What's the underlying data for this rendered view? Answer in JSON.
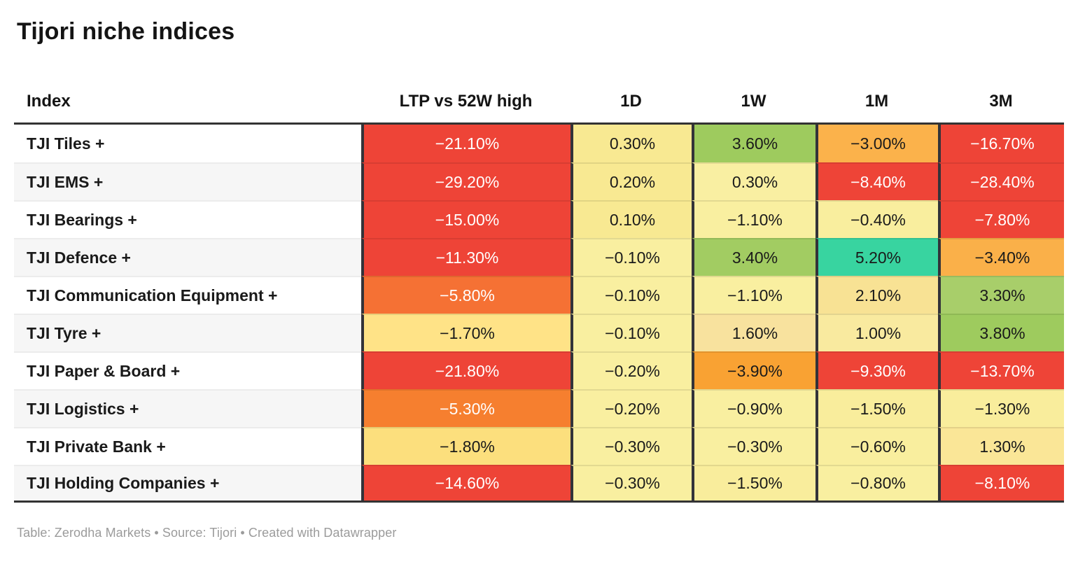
{
  "title": "Tijori niche indices",
  "footer": "Table: Zerodha Markets • Source: Tijori • Created with Datawrapper",
  "colors": {
    "strong_negative": "#ee4437",
    "negative_orange_red": "#f57134",
    "negative_orange": "#fab24b",
    "negative_gold": "#ffe387",
    "neutral_pale_yellow": "#f9efa0",
    "positive_green": "#9ecb5e",
    "strong_positive_teal": "#38d4a0",
    "border_dark": "#333333",
    "row_alt_bg": "#f6f6f6",
    "text_dark": "#1a1a1a",
    "text_light": "#ffffff",
    "footer_gray": "#9b9b9b"
  },
  "chart_data": {
    "type": "heatmap",
    "title": "Tijori niche indices",
    "columns": [
      "Index",
      "LTP vs 52W high",
      "1D",
      "1W",
      "1M",
      "3M"
    ],
    "legend_position": "none",
    "grid": "row-stripes",
    "rows": [
      {
        "index": "TJI Tiles +",
        "cells": [
          {
            "v": "−21.10%",
            "bg": "#ee4437",
            "fg": "#ffffff"
          },
          {
            "v": "0.30%",
            "bg": "#f8e992",
            "fg": "#1a1a1a"
          },
          {
            "v": "3.60%",
            "bg": "#9ecb5e",
            "fg": "#1a1a1a"
          },
          {
            "v": "−3.00%",
            "bg": "#fbb24b",
            "fg": "#1a1a1a"
          },
          {
            "v": "−16.70%",
            "bg": "#ee4437",
            "fg": "#ffffff"
          }
        ]
      },
      {
        "index": "TJI EMS +",
        "cells": [
          {
            "v": "−29.20%",
            "bg": "#ee4437",
            "fg": "#ffffff"
          },
          {
            "v": "0.20%",
            "bg": "#f8e992",
            "fg": "#1a1a1a"
          },
          {
            "v": "0.30%",
            "bg": "#f9efa2",
            "fg": "#1a1a1a"
          },
          {
            "v": "−8.40%",
            "bg": "#ee4437",
            "fg": "#ffffff"
          },
          {
            "v": "−28.40%",
            "bg": "#ee4437",
            "fg": "#ffffff"
          }
        ]
      },
      {
        "index": "TJI Bearings +",
        "cells": [
          {
            "v": "−15.00%",
            "bg": "#ee4437",
            "fg": "#ffffff"
          },
          {
            "v": "0.10%",
            "bg": "#f8e992",
            "fg": "#1a1a1a"
          },
          {
            "v": "−1.10%",
            "bg": "#f9efa0",
            "fg": "#1a1a1a"
          },
          {
            "v": "−0.40%",
            "bg": "#f9ee9e",
            "fg": "#1a1a1a"
          },
          {
            "v": "−7.80%",
            "bg": "#ee4437",
            "fg": "#ffffff"
          }
        ]
      },
      {
        "index": "TJI Defence +",
        "cells": [
          {
            "v": "−11.30%",
            "bg": "#ee4437",
            "fg": "#ffffff"
          },
          {
            "v": "−0.10%",
            "bg": "#f9efa0",
            "fg": "#1a1a1a"
          },
          {
            "v": "3.40%",
            "bg": "#a2cc62",
            "fg": "#1a1a1a"
          },
          {
            "v": "5.20%",
            "bg": "#38d4a0",
            "fg": "#1a1a1a"
          },
          {
            "v": "−3.40%",
            "bg": "#fab049",
            "fg": "#1a1a1a"
          }
        ]
      },
      {
        "index": "TJI Communication Equipment +",
        "cells": [
          {
            "v": "−5.80%",
            "bg": "#f57134",
            "fg": "#ffffff"
          },
          {
            "v": "−0.10%",
            "bg": "#f9efa0",
            "fg": "#1a1a1a"
          },
          {
            "v": "−1.10%",
            "bg": "#f9efa0",
            "fg": "#1a1a1a"
          },
          {
            "v": "2.10%",
            "bg": "#f8e294",
            "fg": "#1a1a1a"
          },
          {
            "v": "3.30%",
            "bg": "#a8ce6a",
            "fg": "#1a1a1a"
          }
        ]
      },
      {
        "index": "TJI Tyre +",
        "cells": [
          {
            "v": "−1.70%",
            "bg": "#ffe387",
            "fg": "#1a1a1a"
          },
          {
            "v": "−0.10%",
            "bg": "#f9efa0",
            "fg": "#1a1a1a"
          },
          {
            "v": "1.60%",
            "bg": "#f8e29e",
            "fg": "#1a1a1a"
          },
          {
            "v": "1.00%",
            "bg": "#f9ea9f",
            "fg": "#1a1a1a"
          },
          {
            "v": "3.80%",
            "bg": "#9ecb5e",
            "fg": "#1a1a1a"
          }
        ]
      },
      {
        "index": "TJI Paper & Board +",
        "cells": [
          {
            "v": "−21.80%",
            "bg": "#ee4437",
            "fg": "#ffffff"
          },
          {
            "v": "−0.20%",
            "bg": "#f9efa0",
            "fg": "#1a1a1a"
          },
          {
            "v": "−3.90%",
            "bg": "#f9a233",
            "fg": "#1a1a1a"
          },
          {
            "v": "−9.30%",
            "bg": "#ee4437",
            "fg": "#ffffff"
          },
          {
            "v": "−13.70%",
            "bg": "#ee4437",
            "fg": "#ffffff"
          }
        ]
      },
      {
        "index": "TJI Logistics +",
        "cells": [
          {
            "v": "−5.30%",
            "bg": "#f67f2f",
            "fg": "#ffffff"
          },
          {
            "v": "−0.20%",
            "bg": "#f9efa0",
            "fg": "#1a1a1a"
          },
          {
            "v": "−0.90%",
            "bg": "#f9efa0",
            "fg": "#1a1a1a"
          },
          {
            "v": "−1.50%",
            "bg": "#f9ed9c",
            "fg": "#1a1a1a"
          },
          {
            "v": "−1.30%",
            "bg": "#f9ed9c",
            "fg": "#1a1a1a"
          }
        ]
      },
      {
        "index": "TJI Private Bank +",
        "cells": [
          {
            "v": "−1.80%",
            "bg": "#fcdf7d",
            "fg": "#1a1a1a"
          },
          {
            "v": "−0.30%",
            "bg": "#f9efa0",
            "fg": "#1a1a1a"
          },
          {
            "v": "−0.30%",
            "bg": "#f9efa0",
            "fg": "#1a1a1a"
          },
          {
            "v": "−0.60%",
            "bg": "#f9ee9e",
            "fg": "#1a1a1a"
          },
          {
            "v": "1.30%",
            "bg": "#fae697",
            "fg": "#1a1a1a"
          }
        ]
      },
      {
        "index": "TJI Holding Companies +",
        "cells": [
          {
            "v": "−14.60%",
            "bg": "#ee4437",
            "fg": "#ffffff"
          },
          {
            "v": "−0.30%",
            "bg": "#f9efa0",
            "fg": "#1a1a1a"
          },
          {
            "v": "−1.50%",
            "bg": "#f9ed9c",
            "fg": "#1a1a1a"
          },
          {
            "v": "−0.80%",
            "bg": "#f9efa0",
            "fg": "#1a1a1a"
          },
          {
            "v": "−8.10%",
            "bg": "#ee4437",
            "fg": "#ffffff"
          }
        ]
      }
    ]
  }
}
